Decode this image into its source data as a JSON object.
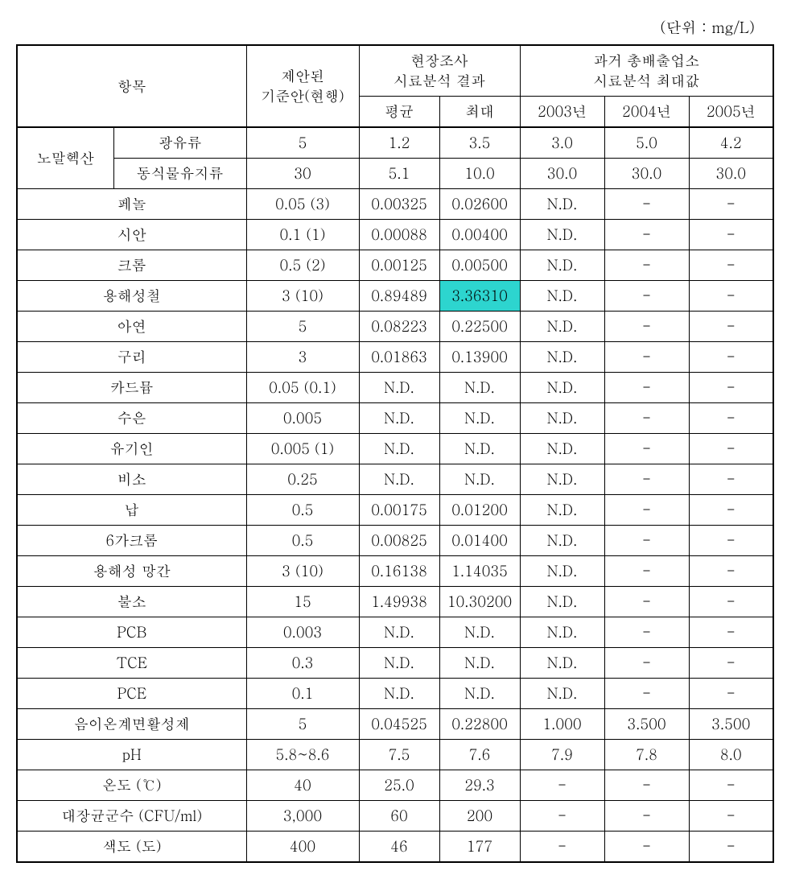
{
  "unit_label": "(단위 : mg/L)",
  "header": {
    "item": "항목",
    "standard": "제안된\n기준안(현행)",
    "field_survey": "현장조사\n시료분석 결과",
    "avg": "평균",
    "max": "최대",
    "past": "과거 총배출업소\n시료분석 최대값",
    "y2003": "2003년",
    "y2004": "2004년",
    "y2005": "2005년"
  },
  "rows": {
    "hexane_group": "노말헥산",
    "hexane_a_label": "광유류",
    "hexane_b_label": "동식물유지류",
    "labels": [
      "페놀",
      "시안",
      "크롬",
      "용해성철",
      "아연",
      "구리",
      "카드뮴",
      "수은",
      "유기인",
      "비소",
      "납",
      "6가크롬",
      "용해성 망간",
      "불소",
      "PCB",
      "TCE",
      "PCE",
      "음이온계면활성제",
      "pH",
      "온도 (℃)",
      "대장균군수 (CFU/ml)",
      "색도 (도)"
    ]
  },
  "data": {
    "hexane_a": {
      "std": "5",
      "avg": "1.2",
      "max": "3.5",
      "y03": "3.0",
      "y04": "5.0",
      "y05": "4.2"
    },
    "hexane_b": {
      "std": "30",
      "avg": "5.1",
      "max": "10.0",
      "y03": "30.0",
      "y04": "30.0",
      "y05": "30.0"
    },
    "r": [
      {
        "std": "0.05 (3)",
        "avg": "0.00325",
        "max": "0.02600",
        "y03": "N.D.",
        "y04": "-",
        "y05": "-"
      },
      {
        "std": "0.1 (1)",
        "avg": "0.00088",
        "max": "0.00400",
        "y03": "N.D.",
        "y04": "-",
        "y05": "-"
      },
      {
        "std": "0.5 (2)",
        "avg": "0.00125",
        "max": "0.00500",
        "y03": "N.D.",
        "y04": "-",
        "y05": "-"
      },
      {
        "std": "3 (10)",
        "avg": "0.89489",
        "max": "3.36310",
        "y03": "N.D.",
        "y04": "-",
        "y05": "-",
        "highlight_max": true
      },
      {
        "std": "5",
        "avg": "0.08223",
        "max": "0.22500",
        "y03": "N.D.",
        "y04": "-",
        "y05": "-"
      },
      {
        "std": "3",
        "avg": "0.01863",
        "max": "0.13900",
        "y03": "N.D.",
        "y04": "-",
        "y05": "-"
      },
      {
        "std": "0.05 (0.1)",
        "avg": "N.D.",
        "max": "N.D.",
        "y03": "N.D.",
        "y04": "-",
        "y05": "-"
      },
      {
        "std": "0.005",
        "avg": "N.D.",
        "max": "N.D.",
        "y03": "N.D.",
        "y04": "-",
        "y05": "-"
      },
      {
        "std": "0.005 (1)",
        "avg": "N.D.",
        "max": "N.D.",
        "y03": "N.D.",
        "y04": "-",
        "y05": "-"
      },
      {
        "std": "0.25",
        "avg": "N.D.",
        "max": "N.D.",
        "y03": "N.D.",
        "y04": "-",
        "y05": "-"
      },
      {
        "std": "0.5",
        "avg": "0.00175",
        "max": "0.01200",
        "y03": "N.D.",
        "y04": "-",
        "y05": "-"
      },
      {
        "std": "0.5",
        "avg": "0.00825",
        "max": "0.01400",
        "y03": "N.D.",
        "y04": "-",
        "y05": "-"
      },
      {
        "std": "3 (10)",
        "avg": "0.16138",
        "max": "1.14035",
        "y03": "N.D.",
        "y04": "-",
        "y05": "-"
      },
      {
        "std": "15",
        "avg": "1.49938",
        "max": "10.30200",
        "y03": "N.D.",
        "y04": "-",
        "y05": "-"
      },
      {
        "std": "0.003",
        "avg": "N.D.",
        "max": "N.D.",
        "y03": "N.D.",
        "y04": "-",
        "y05": "-"
      },
      {
        "std": "0.3",
        "avg": "N.D.",
        "max": "N.D.",
        "y03": "N.D.",
        "y04": "-",
        "y05": "-"
      },
      {
        "std": "0.1",
        "avg": "N.D.",
        "max": "N.D.",
        "y03": "N.D.",
        "y04": "-",
        "y05": "-"
      },
      {
        "std": "5",
        "avg": "0.04525",
        "max": "0.22800",
        "y03": "1.000",
        "y04": "3.500",
        "y05": "3.500"
      },
      {
        "std": "5.8~8.6",
        "avg": "7.5",
        "max": "7.6",
        "y03": "7.9",
        "y04": "7.8",
        "y05": "8.0"
      },
      {
        "std": "40",
        "avg": "25.0",
        "max": "29.3",
        "y03": "-",
        "y04": "-",
        "y05": "-"
      },
      {
        "std": "3,000",
        "avg": "60",
        "max": "200",
        "y03": "-",
        "y04": "-",
        "y05": "-"
      },
      {
        "std": "400",
        "avg": "46",
        "max": "177",
        "y03": "-",
        "y04": "-",
        "y05": "-"
      }
    ]
  },
  "style": {
    "highlight_color": "#2dd5cf",
    "border_color": "#000000",
    "background_color": "#ffffff",
    "font_size_cell": 18,
    "font_size_unit": 19
  }
}
